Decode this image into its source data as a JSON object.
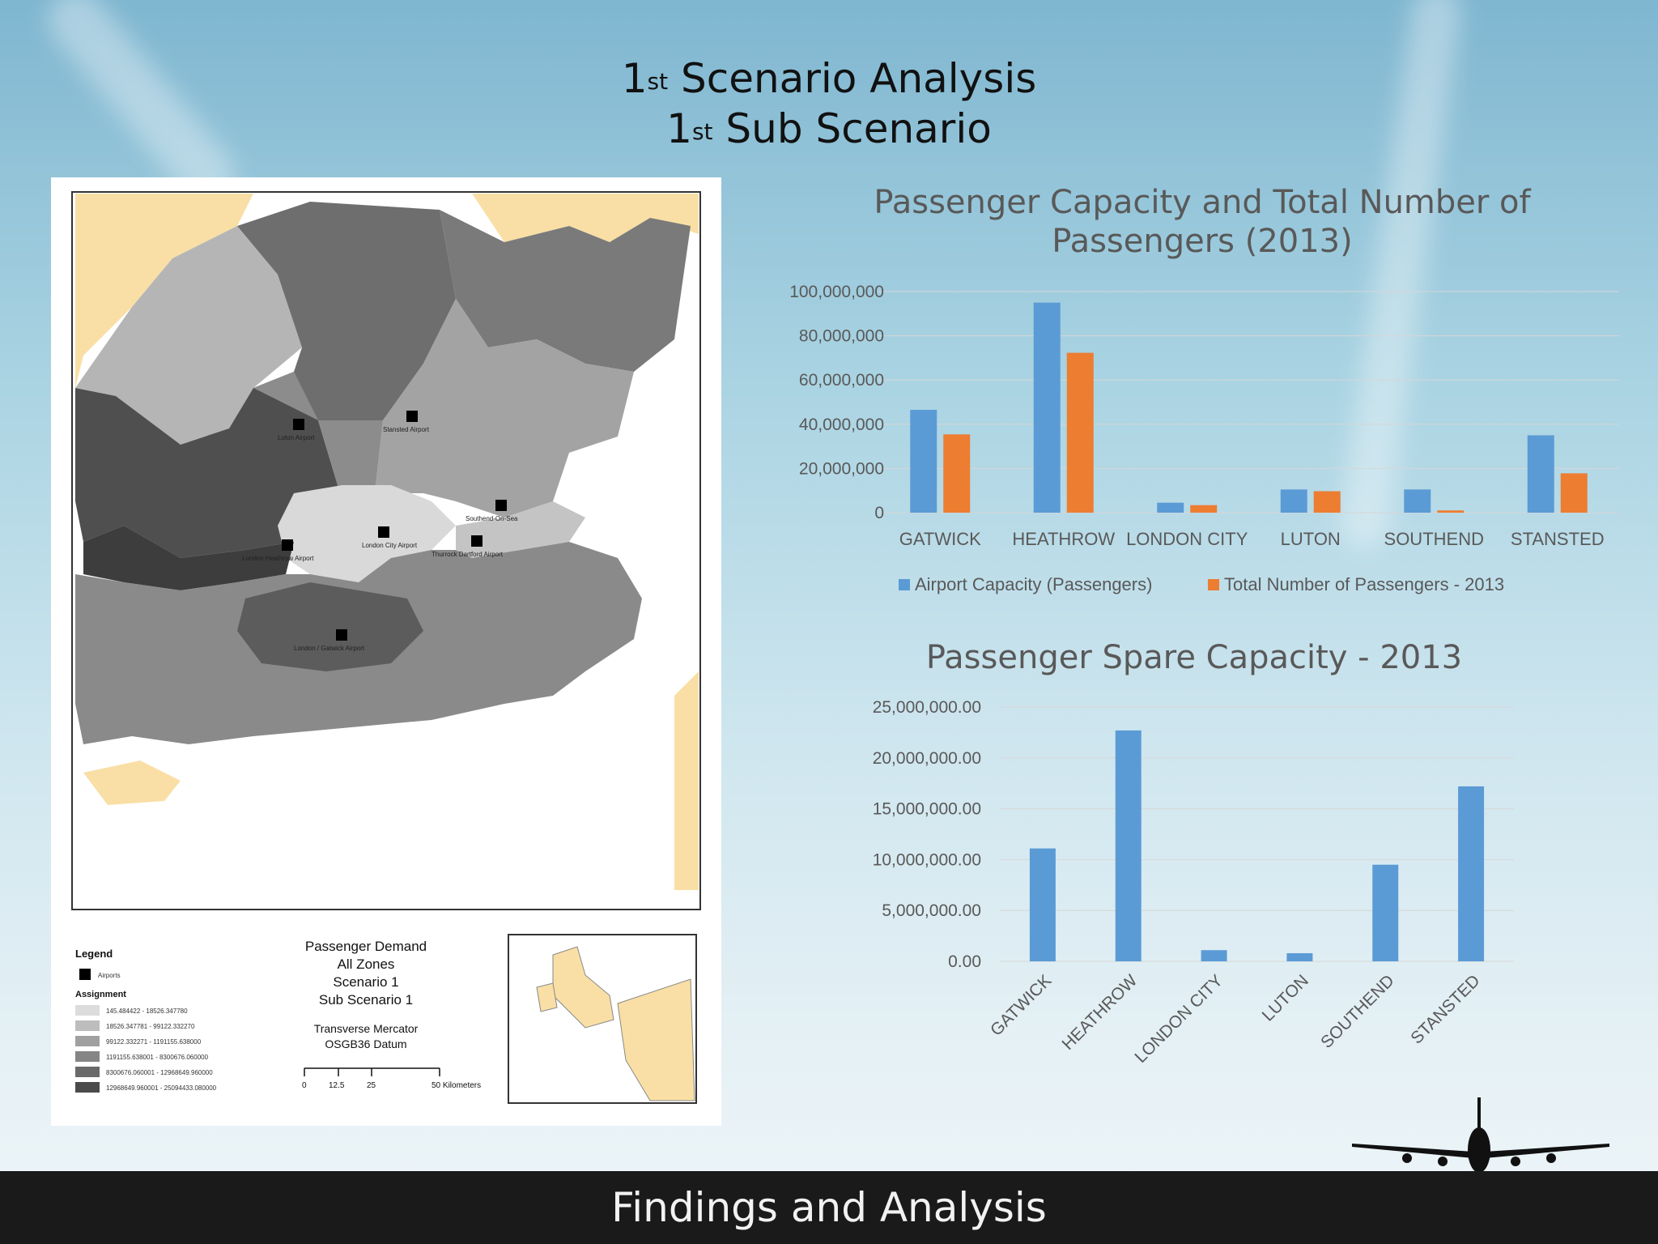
{
  "slide": {
    "title_line1": "1",
    "title_line1_sup": "st",
    "title_line1_rest": " Scenario Analysis",
    "title_line2": "1",
    "title_line2_sup": "st",
    "title_line2_rest": " Sub Scenario",
    "footer": "Findings and Analysis"
  },
  "map": {
    "title_lines": [
      "Passenger Demand",
      "All Zones",
      "Scenario 1",
      "Sub Scenario 1"
    ],
    "projection_lines": [
      "Transverse Mercator",
      "OSGB36 Datum"
    ],
    "legend_title": "Legend",
    "legend_airports": "Airports",
    "legend_assignment": "Assignment",
    "legend_ranges": [
      "145.484422 - 18526.347780",
      "18526.347781 - 99122.332270",
      "99122.332271 - 1191155.638000",
      "1191155.638001 - 8300676.060000",
      "8300676.060001 - 12968649.960000",
      "12968649.960001 - 25094433.080000"
    ],
    "legend_colors": [
      "#dcdcdc",
      "#bdbdbd",
      "#a0a0a0",
      "#858585",
      "#6a6a6a",
      "#4b4b4b"
    ],
    "scale_ticks": [
      "0",
      "12.5",
      "25",
      "50 Kilometers"
    ],
    "airport_labels": [
      "Luton Airport",
      "Stansted Airport",
      "Southend-On-Sea",
      "London City Airport",
      "London Heathrow Airport",
      "Thurrock Dartford Airport",
      "London / Gatwick Airport"
    ]
  },
  "chart_data": [
    {
      "type": "bar",
      "title": "Passenger Capacity and Total Number of Passengers (2013)",
      "title_lines": [
        "Passenger Capacity and Total Number of",
        "Passengers (2013)"
      ],
      "categories": [
        "GATWICK",
        "HEATHROW",
        "LONDON CITY",
        "LUTON",
        "SOUTHEND",
        "STANSTED"
      ],
      "series": [
        {
          "name": "Airport Capacity (Passengers)",
          "color": "#5b9bd5",
          "values": [
            46500000,
            95000000,
            4500000,
            10500000,
            10500000,
            35000000
          ]
        },
        {
          "name": "Total Number of Passengers - 2013",
          "color": "#ed7d31",
          "values": [
            35400000,
            72300000,
            3400000,
            9700000,
            1000000,
            17800000
          ]
        }
      ],
      "ylim": [
        0,
        100000000
      ],
      "yticks": [
        "0",
        "20,000,000",
        "40,000,000",
        "60,000,000",
        "80,000,000",
        "100,000,000"
      ],
      "grid": true,
      "legend": "bottom"
    },
    {
      "type": "bar",
      "title": "Passenger Spare Capacity - 2013",
      "categories": [
        "GATWICK",
        "HEATHROW",
        "LONDON CITY",
        "LUTON",
        "SOUTHEND",
        "STANSTED"
      ],
      "series": [
        {
          "color": "#5b9bd5",
          "values": [
            11100000,
            22700000,
            1100000,
            800000,
            9500000,
            17200000
          ]
        }
      ],
      "ylim": [
        0,
        25000000
      ],
      "yticks": [
        "0.00",
        "5,000,000.00",
        "10,000,000.00",
        "15,000,000.00",
        "20,000,000.00",
        "25,000,000.00"
      ],
      "grid": true,
      "legend": "none"
    }
  ]
}
